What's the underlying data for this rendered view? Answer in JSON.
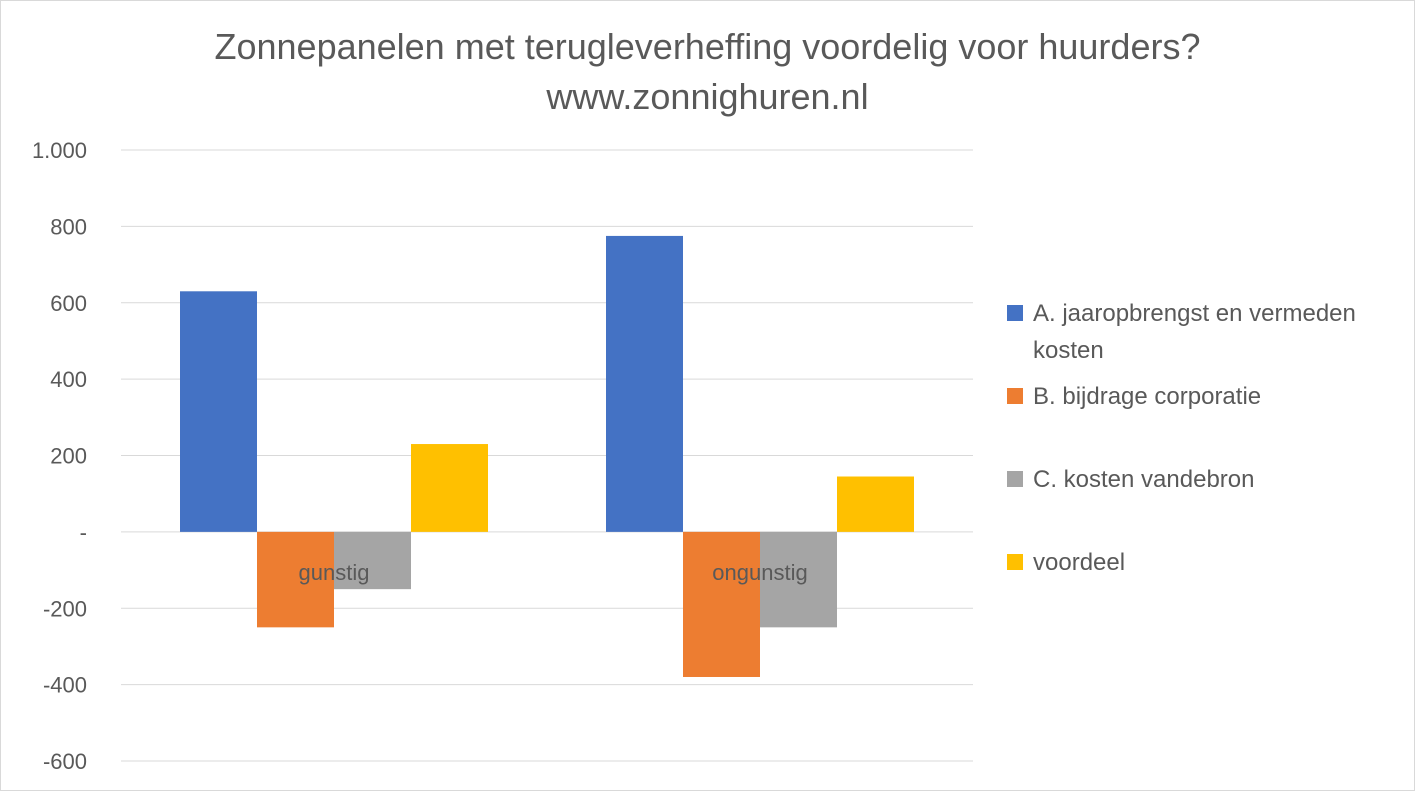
{
  "chart_data": {
    "type": "bar",
    "title": "Zonnepanelen met terugleverheffing voordelig voor huurders?",
    "subtitle": "www.zonnighuren.nl",
    "categories": [
      "gunstig",
      "ongunstig"
    ],
    "series": [
      {
        "name": "A. jaaropbrengst en vermeden kosten",
        "values": [
          630,
          775
        ],
        "color": "#4472c4"
      },
      {
        "name": "B. bijdrage corporatie",
        "values": [
          -250,
          -380
        ],
        "color": "#ed7d31"
      },
      {
        "name": "C. kosten vandebron",
        "values": [
          -150,
          -250
        ],
        "color": "#a5a5a5"
      },
      {
        "name": "voordeel",
        "values": [
          230,
          145
        ],
        "color": "#ffc000"
      }
    ],
    "ylim": [
      -600,
      1000
    ],
    "yticks": [
      1000,
      800,
      600,
      400,
      200,
      0,
      -200,
      -400,
      -600
    ],
    "ytick_labels": [
      "1.000",
      "800",
      "600",
      "400",
      "200",
      "-",
      "-200",
      "-400",
      "-600"
    ],
    "grid": true,
    "legend_position": "right",
    "xlabel": "",
    "ylabel": ""
  }
}
